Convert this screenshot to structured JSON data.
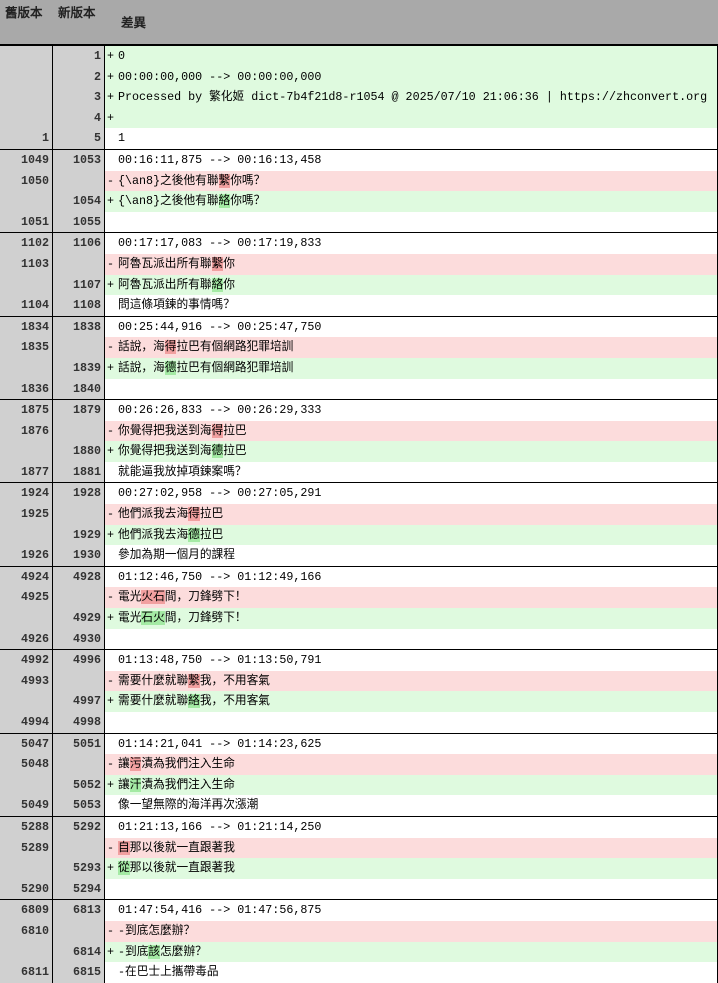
{
  "header": {
    "old_label": "舊版本",
    "new_label": "新版本",
    "diff_label": "差異"
  },
  "colors": {
    "header_bg": "#a9a9a9",
    "gutter_bg": "#d0d0d0",
    "added_bg": "#dffadf",
    "removed_bg": "#fcdcdc",
    "added_highlight": "#a4eaa4",
    "removed_highlight": "#f1a0a0"
  },
  "blocks": [
    [
      {
        "old": "",
        "new": "1",
        "type": "add",
        "prefix": "+",
        "segs": [
          {
            "t": "0"
          }
        ]
      },
      {
        "old": "",
        "new": "2",
        "type": "add",
        "prefix": "+",
        "segs": [
          {
            "t": "00:00:00,000 --> 00:00:00,000"
          }
        ]
      },
      {
        "old": "",
        "new": "3",
        "type": "add",
        "prefix": "+",
        "segs": [
          {
            "t": "Processed by 繁化姬 dict-7b4f21d8-r1054 @ 2025/07/10 21:06:36 | https://zhconvert.org"
          }
        ]
      },
      {
        "old": "",
        "new": "4",
        "type": "add",
        "prefix": "+",
        "segs": [
          {
            "t": ""
          }
        ]
      },
      {
        "old": "1",
        "new": "5",
        "type": "ctx",
        "prefix": "",
        "segs": [
          {
            "t": "1"
          }
        ]
      }
    ],
    [
      {
        "old": "1049",
        "new": "1053",
        "type": "ctx",
        "prefix": "",
        "segs": [
          {
            "t": "00:16:11,875 --> 00:16:13,458"
          }
        ]
      },
      {
        "old": "1050",
        "new": "",
        "type": "del",
        "prefix": "-",
        "segs": [
          {
            "t": "{\\an8}之後他有聯"
          },
          {
            "t": "繫",
            "h": 1
          },
          {
            "t": "你嗎？"
          }
        ]
      },
      {
        "old": "",
        "new": "1054",
        "type": "add",
        "prefix": "+",
        "segs": [
          {
            "t": "{\\an8}之後他有聯"
          },
          {
            "t": "絡",
            "h": 1
          },
          {
            "t": "你嗎？"
          }
        ]
      },
      {
        "old": "1051",
        "new": "1055",
        "type": "ctx",
        "prefix": "",
        "segs": [
          {
            "t": ""
          }
        ]
      }
    ],
    [
      {
        "old": "1102",
        "new": "1106",
        "type": "ctx",
        "prefix": "",
        "segs": [
          {
            "t": "00:17:17,083 --> 00:17:19,833"
          }
        ]
      },
      {
        "old": "1103",
        "new": "",
        "type": "del",
        "prefix": "-",
        "segs": [
          {
            "t": "阿魯瓦派出所有聯"
          },
          {
            "t": "繫",
            "h": 1
          },
          {
            "t": "你"
          }
        ]
      },
      {
        "old": "",
        "new": "1107",
        "type": "add",
        "prefix": "+",
        "segs": [
          {
            "t": "阿魯瓦派出所有聯"
          },
          {
            "t": "絡",
            "h": 1
          },
          {
            "t": "你"
          }
        ]
      },
      {
        "old": "1104",
        "new": "1108",
        "type": "ctx",
        "prefix": "",
        "segs": [
          {
            "t": "問這條項鍊的事情嗎？"
          }
        ]
      }
    ],
    [
      {
        "old": "1834",
        "new": "1838",
        "type": "ctx",
        "prefix": "",
        "segs": [
          {
            "t": "00:25:44,916 --> 00:25:47,750"
          }
        ]
      },
      {
        "old": "1835",
        "new": "",
        "type": "del",
        "prefix": "-",
        "segs": [
          {
            "t": "話說，海"
          },
          {
            "t": "得",
            "h": 1
          },
          {
            "t": "拉巴有個網路犯罪培訓"
          }
        ]
      },
      {
        "old": "",
        "new": "1839",
        "type": "add",
        "prefix": "+",
        "segs": [
          {
            "t": "話說，海"
          },
          {
            "t": "德",
            "h": 1
          },
          {
            "t": "拉巴有個網路犯罪培訓"
          }
        ]
      },
      {
        "old": "1836",
        "new": "1840",
        "type": "ctx",
        "prefix": "",
        "segs": [
          {
            "t": ""
          }
        ]
      }
    ],
    [
      {
        "old": "1875",
        "new": "1879",
        "type": "ctx",
        "prefix": "",
        "segs": [
          {
            "t": "00:26:26,833 --> 00:26:29,333"
          }
        ]
      },
      {
        "old": "1876",
        "new": "",
        "type": "del",
        "prefix": "-",
        "segs": [
          {
            "t": "你覺得把我送到海"
          },
          {
            "t": "得",
            "h": 1
          },
          {
            "t": "拉巴"
          }
        ]
      },
      {
        "old": "",
        "new": "1880",
        "type": "add",
        "prefix": "+",
        "segs": [
          {
            "t": "你覺得把我送到海"
          },
          {
            "t": "德",
            "h": 1
          },
          {
            "t": "拉巴"
          }
        ]
      },
      {
        "old": "1877",
        "new": "1881",
        "type": "ctx",
        "prefix": "",
        "segs": [
          {
            "t": "就能逼我放掉項鍊案嗎？"
          }
        ]
      }
    ],
    [
      {
        "old": "1924",
        "new": "1928",
        "type": "ctx",
        "prefix": "",
        "segs": [
          {
            "t": "00:27:02,958 --> 00:27:05,291"
          }
        ]
      },
      {
        "old": "1925",
        "new": "",
        "type": "del",
        "prefix": "-",
        "segs": [
          {
            "t": "他們派我去海"
          },
          {
            "t": "得",
            "h": 1
          },
          {
            "t": "拉巴"
          }
        ]
      },
      {
        "old": "",
        "new": "1929",
        "type": "add",
        "prefix": "+",
        "segs": [
          {
            "t": "他們派我去海"
          },
          {
            "t": "德",
            "h": 1
          },
          {
            "t": "拉巴"
          }
        ]
      },
      {
        "old": "1926",
        "new": "1930",
        "type": "ctx",
        "prefix": "",
        "segs": [
          {
            "t": "參加為期一個月的課程"
          }
        ]
      }
    ],
    [
      {
        "old": "4924",
        "new": "4928",
        "type": "ctx",
        "prefix": "",
        "segs": [
          {
            "t": "01:12:46,750 --> 01:12:49,166"
          }
        ]
      },
      {
        "old": "4925",
        "new": "",
        "type": "del",
        "prefix": "-",
        "segs": [
          {
            "t": "電光"
          },
          {
            "t": "火石",
            "h": 1
          },
          {
            "t": "間，刀鋒劈下！"
          }
        ]
      },
      {
        "old": "",
        "new": "4929",
        "type": "add",
        "prefix": "+",
        "segs": [
          {
            "t": "電光"
          },
          {
            "t": "石火",
            "h": 1
          },
          {
            "t": "間，刀鋒劈下！"
          }
        ]
      },
      {
        "old": "4926",
        "new": "4930",
        "type": "ctx",
        "prefix": "",
        "segs": [
          {
            "t": ""
          }
        ]
      }
    ],
    [
      {
        "old": "4992",
        "new": "4996",
        "type": "ctx",
        "prefix": "",
        "segs": [
          {
            "t": "01:13:48,750 --> 01:13:50,791"
          }
        ]
      },
      {
        "old": "4993",
        "new": "",
        "type": "del",
        "prefix": "-",
        "segs": [
          {
            "t": "需要什麼就聯"
          },
          {
            "t": "繫",
            "h": 1
          },
          {
            "t": "我，不用客氣"
          }
        ]
      },
      {
        "old": "",
        "new": "4997",
        "type": "add",
        "prefix": "+",
        "segs": [
          {
            "t": "需要什麼就聯"
          },
          {
            "t": "絡",
            "h": 1
          },
          {
            "t": "我，不用客氣"
          }
        ]
      },
      {
        "old": "4994",
        "new": "4998",
        "type": "ctx",
        "prefix": "",
        "segs": [
          {
            "t": ""
          }
        ]
      }
    ],
    [
      {
        "old": "5047",
        "new": "5051",
        "type": "ctx",
        "prefix": "",
        "segs": [
          {
            "t": "01:14:21,041 --> 01:14:23,625"
          }
        ]
      },
      {
        "old": "5048",
        "new": "",
        "type": "del",
        "prefix": "-",
        "segs": [
          {
            "t": "讓"
          },
          {
            "t": "污",
            "h": 1
          },
          {
            "t": "漬為我們注入生命"
          }
        ]
      },
      {
        "old": "",
        "new": "5052",
        "type": "add",
        "prefix": "+",
        "segs": [
          {
            "t": "讓"
          },
          {
            "t": "汗",
            "h": 1
          },
          {
            "t": "漬為我們注入生命"
          }
        ]
      },
      {
        "old": "5049",
        "new": "5053",
        "type": "ctx",
        "prefix": "",
        "segs": [
          {
            "t": "像一望無際的海洋再次漲潮"
          }
        ]
      }
    ],
    [
      {
        "old": "5288",
        "new": "5292",
        "type": "ctx",
        "prefix": "",
        "segs": [
          {
            "t": "01:21:13,166 --> 01:21:14,250"
          }
        ]
      },
      {
        "old": "5289",
        "new": "",
        "type": "del",
        "prefix": "-",
        "segs": [
          {
            "t": "自",
            "h": 1
          },
          {
            "t": "那以後就一直跟著我"
          }
        ]
      },
      {
        "old": "",
        "new": "5293",
        "type": "add",
        "prefix": "+",
        "segs": [
          {
            "t": "從",
            "h": 1
          },
          {
            "t": "那以後就一直跟著我"
          }
        ]
      },
      {
        "old": "5290",
        "new": "5294",
        "type": "ctx",
        "prefix": "",
        "segs": [
          {
            "t": ""
          }
        ]
      }
    ],
    [
      {
        "old": "6809",
        "new": "6813",
        "type": "ctx",
        "prefix": "",
        "segs": [
          {
            "t": "01:47:54,416 --> 01:47:56,875"
          }
        ]
      },
      {
        "old": "6810",
        "new": "",
        "type": "del",
        "prefix": "-",
        "segs": [
          {
            "t": "-到底怎麼辦？"
          }
        ]
      },
      {
        "old": "",
        "new": "6814",
        "type": "add",
        "prefix": "+",
        "segs": [
          {
            "t": "-到底"
          },
          {
            "t": "該",
            "h": 1
          },
          {
            "t": "怎麼辦？"
          }
        ]
      },
      {
        "old": "6811",
        "new": "6815",
        "type": "ctx",
        "prefix": "",
        "segs": [
          {
            "t": "-在巴士上攜帶毒品"
          }
        ]
      }
    ]
  ]
}
